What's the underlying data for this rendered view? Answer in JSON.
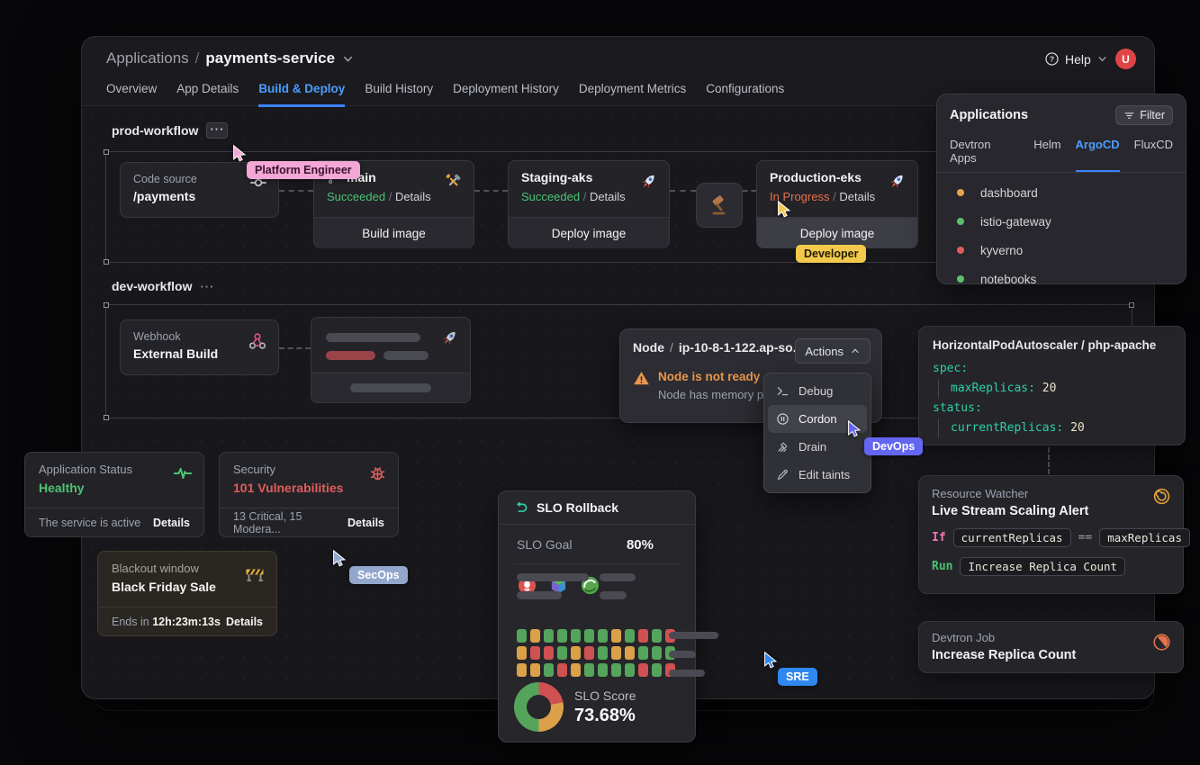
{
  "window": {
    "breadcrumb": {
      "root": "Applications",
      "separator": "/",
      "current": "payments-service"
    },
    "help_label": "Help",
    "avatar_initial": "U",
    "tabs": [
      {
        "label": "Overview"
      },
      {
        "label": "App Details"
      },
      {
        "label": "Build & Deploy",
        "active": true
      },
      {
        "label": "Build History"
      },
      {
        "label": "Deployment History"
      },
      {
        "label": "Deployment Metrics"
      },
      {
        "label": "Configurations"
      }
    ]
  },
  "prod_workflow": {
    "title": "prod-workflow",
    "more_icon": "···",
    "code_source": {
      "label": "Code source",
      "value": "/payments"
    },
    "build": {
      "branch": "main",
      "status": "Succeeded",
      "separator": "/",
      "details": "Details",
      "action": "Build image"
    },
    "staging": {
      "name": "Staging-aks",
      "status": "Succeeded",
      "separator": "/",
      "details": "Details",
      "action": "Deploy image"
    },
    "production": {
      "name": "Production-eks",
      "status": "In Progress",
      "separator": "/",
      "details": "Details",
      "action": "Deploy image"
    }
  },
  "dev_workflow": {
    "title": "dev-workflow",
    "more_icon": "···",
    "webhook": {
      "label": "Webhook",
      "value": "External Build"
    }
  },
  "node_panel": {
    "kind": "Node",
    "separator": "/",
    "name": "ip-10-8-1-122.ap-so...",
    "actions_label": "Actions",
    "warning_title": "Node is not ready",
    "warning_detail": "Node has memory pre...",
    "menu": [
      {
        "label": "Debug"
      },
      {
        "label": "Cordon",
        "active": true
      },
      {
        "label": "Drain"
      },
      {
        "label": "Edit taints"
      }
    ]
  },
  "hpa_panel": {
    "title": "HorizontalPodAutoscaler / php-apache",
    "lines": [
      {
        "key": "spec",
        "value": ""
      },
      {
        "key": "maxReplicas",
        "value": "20",
        "indent": true
      },
      {
        "key": "status",
        "value": ""
      },
      {
        "key": "currentReplicas",
        "value": "20",
        "indent": true
      }
    ]
  },
  "status_cards": {
    "app_status": {
      "label": "Application Status",
      "value": "Healthy",
      "footer": "The service is active",
      "details": "Details",
      "value_color": "#4cc273"
    },
    "security": {
      "label": "Security",
      "value": "101 Vulnerabilities",
      "footer": "13 Critical, 15 Modera...",
      "details": "Details",
      "value_color": "#e05c5c"
    },
    "blackout": {
      "label": "Blackout window",
      "value": "Black Friday Sale",
      "footer_prefix": "Ends in",
      "footer_value": "12h:23m:13s",
      "details": "Details"
    }
  },
  "slo_panel": {
    "title": "SLO Rollback",
    "goal_label": "SLO Goal",
    "goal_value": "80%",
    "score_label": "SLO Score",
    "score_value": "73.68%",
    "heatmap": {
      "colors": {
        "G": "#55a45c",
        "O": "#dba148",
        "R": "#cf5152"
      },
      "rows": [
        [
          "G",
          "O",
          "G",
          "G",
          "G",
          "G",
          "G",
          "O",
          "G",
          "R",
          "G",
          "R"
        ],
        [
          "O",
          "R",
          "R",
          "G",
          "O",
          "R",
          "G",
          "O",
          "O",
          "G",
          "G",
          "G"
        ],
        [
          "O",
          "O",
          "G",
          "R",
          "O",
          "G",
          "G",
          "G",
          "G",
          "R",
          "G",
          "R"
        ]
      ]
    },
    "donut_segments": [
      {
        "color": "#cf5152",
        "pct": 22
      },
      {
        "color": "#dba148",
        "pct": 28
      },
      {
        "color": "#55a45c",
        "pct": 50
      }
    ]
  },
  "resource_watcher": {
    "label": "Resource Watcher",
    "title": "Live Stream Scaling Alert",
    "if_keyword": "If",
    "if_left": "currentReplicas",
    "operator": "==",
    "if_right": "maxReplicas",
    "run_keyword": "Run",
    "run_value": "Increase Replica Count"
  },
  "devtron_job": {
    "label": "Devtron Job",
    "value": "Increase Replica Count"
  },
  "apps_panel": {
    "title": "Applications",
    "filter_label": "Filter",
    "tabs": [
      {
        "label": "Devtron Apps"
      },
      {
        "label": "Helm"
      },
      {
        "label": "ArgoCD",
        "active": true
      },
      {
        "label": "FluxCD"
      }
    ],
    "items": [
      {
        "name": "dashboard",
        "status_color": "#e8a04c"
      },
      {
        "name": "istio-gateway",
        "status_color": "#5cbf6a"
      },
      {
        "name": "kyverno",
        "status_color": "#e05c5c"
      },
      {
        "name": "notebooks",
        "status_color": "#5cbf6a"
      }
    ]
  },
  "cursors": [
    {
      "label": "Platform Engineer",
      "color": "#f2a7d4",
      "text_color": "#3d1230"
    },
    {
      "label": "Developer",
      "color": "#f2c94c",
      "text_color": "#241c04"
    },
    {
      "label": "DevOps",
      "color": "#6366f1",
      "text_color": "#ffffff"
    },
    {
      "label": "SecOps",
      "color": "#93a7cc",
      "text_color": "#ffffff"
    },
    {
      "label": "SRE",
      "color": "#2f88f0",
      "text_color": "#ffffff"
    }
  ]
}
